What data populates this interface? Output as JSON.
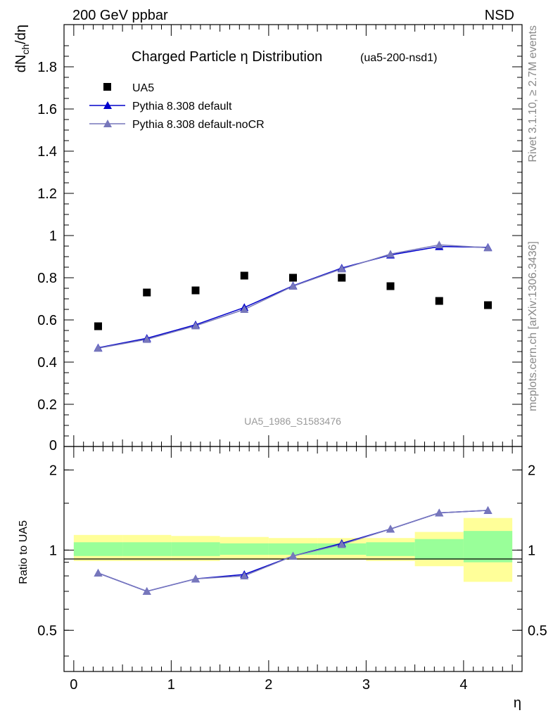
{
  "header": {
    "left": "200 GeV ppbar",
    "right": "NSD"
  },
  "side_labels": {
    "rivet": "Rivet 3.1.10, ≥ 2.7M events",
    "mcplots": "mcplots.cern.ch [arXiv:1306.3436]"
  },
  "colors": {
    "data": "#000000",
    "pythia_default": "#0000cc",
    "pythia_nocr": "#7777bb",
    "band_inner": "#99ff99",
    "band_outer": "#ffff99"
  },
  "chart_data": [
    {
      "type": "scatter",
      "title": "Charged Particle η Distribution",
      "subtitle": "(ua5-200-nsd1)",
      "watermark": "UA5_1986_S1583476",
      "xlabel": "η",
      "ylabel": "dN_ch/dη",
      "xlim": [
        -0.1,
        4.6
      ],
      "ylim": [
        0,
        2.0
      ],
      "y_ticks": [
        0,
        0.2,
        0.4,
        0.6,
        0.8,
        1,
        1.2,
        1.4,
        1.6,
        1.8
      ],
      "y_tick_labels": [
        "0",
        "0.2",
        "0.4",
        "0.6",
        "0.8",
        "1",
        "1.2",
        "1.4",
        "1.6",
        "1.8"
      ],
      "x_bins": [
        [
          0,
          0.5
        ],
        [
          0.5,
          1.0
        ],
        [
          1.0,
          1.5
        ],
        [
          1.5,
          2.0
        ],
        [
          2.0,
          2.5
        ],
        [
          2.5,
          3.0
        ],
        [
          3.0,
          3.5
        ],
        [
          3.5,
          4.0
        ],
        [
          4.0,
          4.5
        ]
      ],
      "x": [
        0.25,
        0.75,
        1.25,
        1.75,
        2.25,
        2.75,
        3.25,
        3.75,
        4.25
      ],
      "legend_position": "top-left",
      "series": [
        {
          "name": "UA5",
          "marker": "square",
          "values": [
            0.57,
            0.73,
            0.74,
            0.81,
            0.8,
            0.8,
            0.76,
            0.69,
            0.67
          ]
        },
        {
          "name": "Pythia 8.308 default",
          "marker": "triangle",
          "values": [
            0.468,
            0.513,
            0.577,
            0.659,
            0.762,
            0.846,
            0.908,
            0.948,
            0.944
          ]
        },
        {
          "name": "Pythia 8.308 default-noCR",
          "marker": "triangle",
          "values": [
            0.466,
            0.508,
            0.572,
            0.65,
            0.76,
            0.842,
            0.912,
            0.956,
            0.942
          ]
        }
      ]
    },
    {
      "type": "line",
      "ylabel": "Ratio to UA5",
      "xlabel": "η",
      "xlim": [
        -0.1,
        4.6
      ],
      "ylim": [
        0.35,
        2.45
      ],
      "x_ticks": [
        0,
        1,
        2,
        3,
        4
      ],
      "x_tick_labels": [
        "0",
        "1",
        "2",
        "3",
        "4"
      ],
      "y_ticks": [
        0.5,
        1,
        2
      ],
      "y_tick_labels": [
        "0.5",
        "1",
        "2"
      ],
      "x": [
        0.25,
        0.75,
        1.25,
        1.75,
        2.25,
        2.75,
        3.25,
        3.75,
        4.25
      ],
      "series": [
        {
          "name": "Pythia 8.308 default",
          "values": [
            0.82,
            0.7,
            0.78,
            0.81,
            0.95,
            1.06,
            1.2,
            1.38,
            1.41
          ]
        },
        {
          "name": "Pythia 8.308 default-noCR",
          "values": [
            0.82,
            0.7,
            0.78,
            0.8,
            0.95,
            1.05,
            1.2,
            1.38,
            1.41
          ]
        }
      ],
      "uncertainty_bands": {
        "inner": [
          [
            0.95,
            1.07
          ],
          [
            0.95,
            1.07
          ],
          [
            0.95,
            1.07
          ],
          [
            0.96,
            1.06
          ],
          [
            0.96,
            1.06
          ],
          [
            0.96,
            1.06
          ],
          [
            0.95,
            1.07
          ],
          [
            0.92,
            1.1
          ],
          [
            0.9,
            1.18
          ]
        ],
        "outer": [
          [
            0.91,
            1.14
          ],
          [
            0.91,
            1.14
          ],
          [
            0.91,
            1.13
          ],
          [
            0.92,
            1.12
          ],
          [
            0.92,
            1.11
          ],
          [
            0.92,
            1.11
          ],
          [
            0.91,
            1.11
          ],
          [
            0.87,
            1.17
          ],
          [
            0.76,
            1.32
          ]
        ]
      }
    }
  ]
}
